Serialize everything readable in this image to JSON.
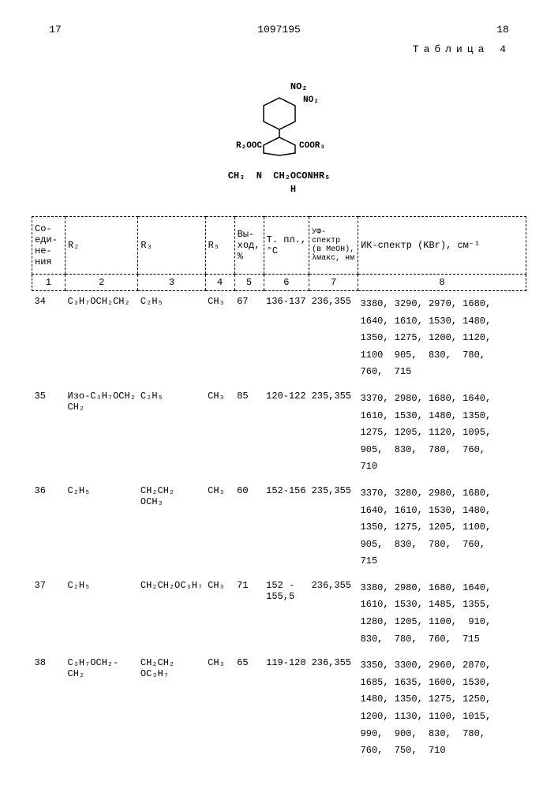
{
  "header": {
    "left_page": "17",
    "doc_number": "1097195",
    "right_page": "18",
    "table_label": "Таблица 4"
  },
  "structure": {
    "line1": "       NO₂",
    "line2": "      ⬡",
    "line3": "R₂OOC   COOR₃",
    "line4": "CH₃  N  CH₂OCONHR₅",
    "line5": "     H"
  },
  "columns": {
    "c1": "Со-\nеди-\nне-\nния",
    "c2": "R₂",
    "c3": "R₃",
    "c4": "R₅",
    "c5": "Вы-\nход,\n%",
    "c6": "Т. пл.,\n°С",
    "c7": "УФ-\nспектр\n(в МеОН),\nλмакс, нм",
    "c8": "ИК-спектр (KBr), см⁻¹"
  },
  "colnums": [
    "1",
    "2",
    "3",
    "4",
    "5",
    "6",
    "7",
    "8"
  ],
  "rows": [
    {
      "id": "34",
      "r2": "С₃Н₇ОСН₂СН₂",
      "r3": "С₂Н₅",
      "r5": "СН₃",
      "yield": "67",
      "mp": "136-137",
      "uv": "236,355",
      "ir": "3380, 3290, 2970, 1680,\n1640, 1610, 1530, 1480,\n1350, 1275, 1200, 1120,\n1100  905,  830,  780,\n760,  715"
    },
    {
      "id": "35",
      "r2": "Изо-С₃Н₇ОСН₂\nСН₂",
      "r3": "С₂Н₅",
      "r5": "СН₃",
      "yield": "85",
      "mp": "120-122",
      "uv": "235,355",
      "ir": "3370, 2980, 1680, 1640,\n1610, 1530, 1480, 1350,\n1275, 1205, 1120, 1095,\n905,  830,  780,  760,\n710"
    },
    {
      "id": "36",
      "r2": "С₂Н₅",
      "r3": "СН₂СН₂\nОСН₃",
      "r5": "СН₃",
      "yield": "60",
      "mp": "152-156",
      "uv": "235,355",
      "ir": "3370, 3280, 2980, 1680,\n1640, 1610, 1530, 1480,\n1350, 1275, 1205, 1100,\n905,  830,  780,  760,\n715"
    },
    {
      "id": "37",
      "r2": "С₂Н₅",
      "r3": "СН₂СН₂ОС₃Н₇",
      "r5": "СН₃",
      "yield": "71",
      "mp": "152 -\n155,5",
      "uv": "236,355",
      "ir": "3380, 2980, 1680, 1640,\n1610, 1530, 1485, 1355,\n1280, 1205, 1100,  910,\n830,  780,  760,  715"
    },
    {
      "id": "38",
      "r2": "С₃Н₇ОСН₂-\nСН₂",
      "r3": "СН₂СН₂\nОС₃Н₇",
      "r5": "СН₃",
      "yield": "65",
      "mp": "119-120",
      "uv": "236,355",
      "ir": "3350, 3300, 2960, 2870,\n1685, 1635, 1600, 1530,\n1480, 1350, 1275, 1250,\n1200, 1130, 1100, 1015,\n990,  900,  830,  780,\n760,  750,  710"
    }
  ]
}
